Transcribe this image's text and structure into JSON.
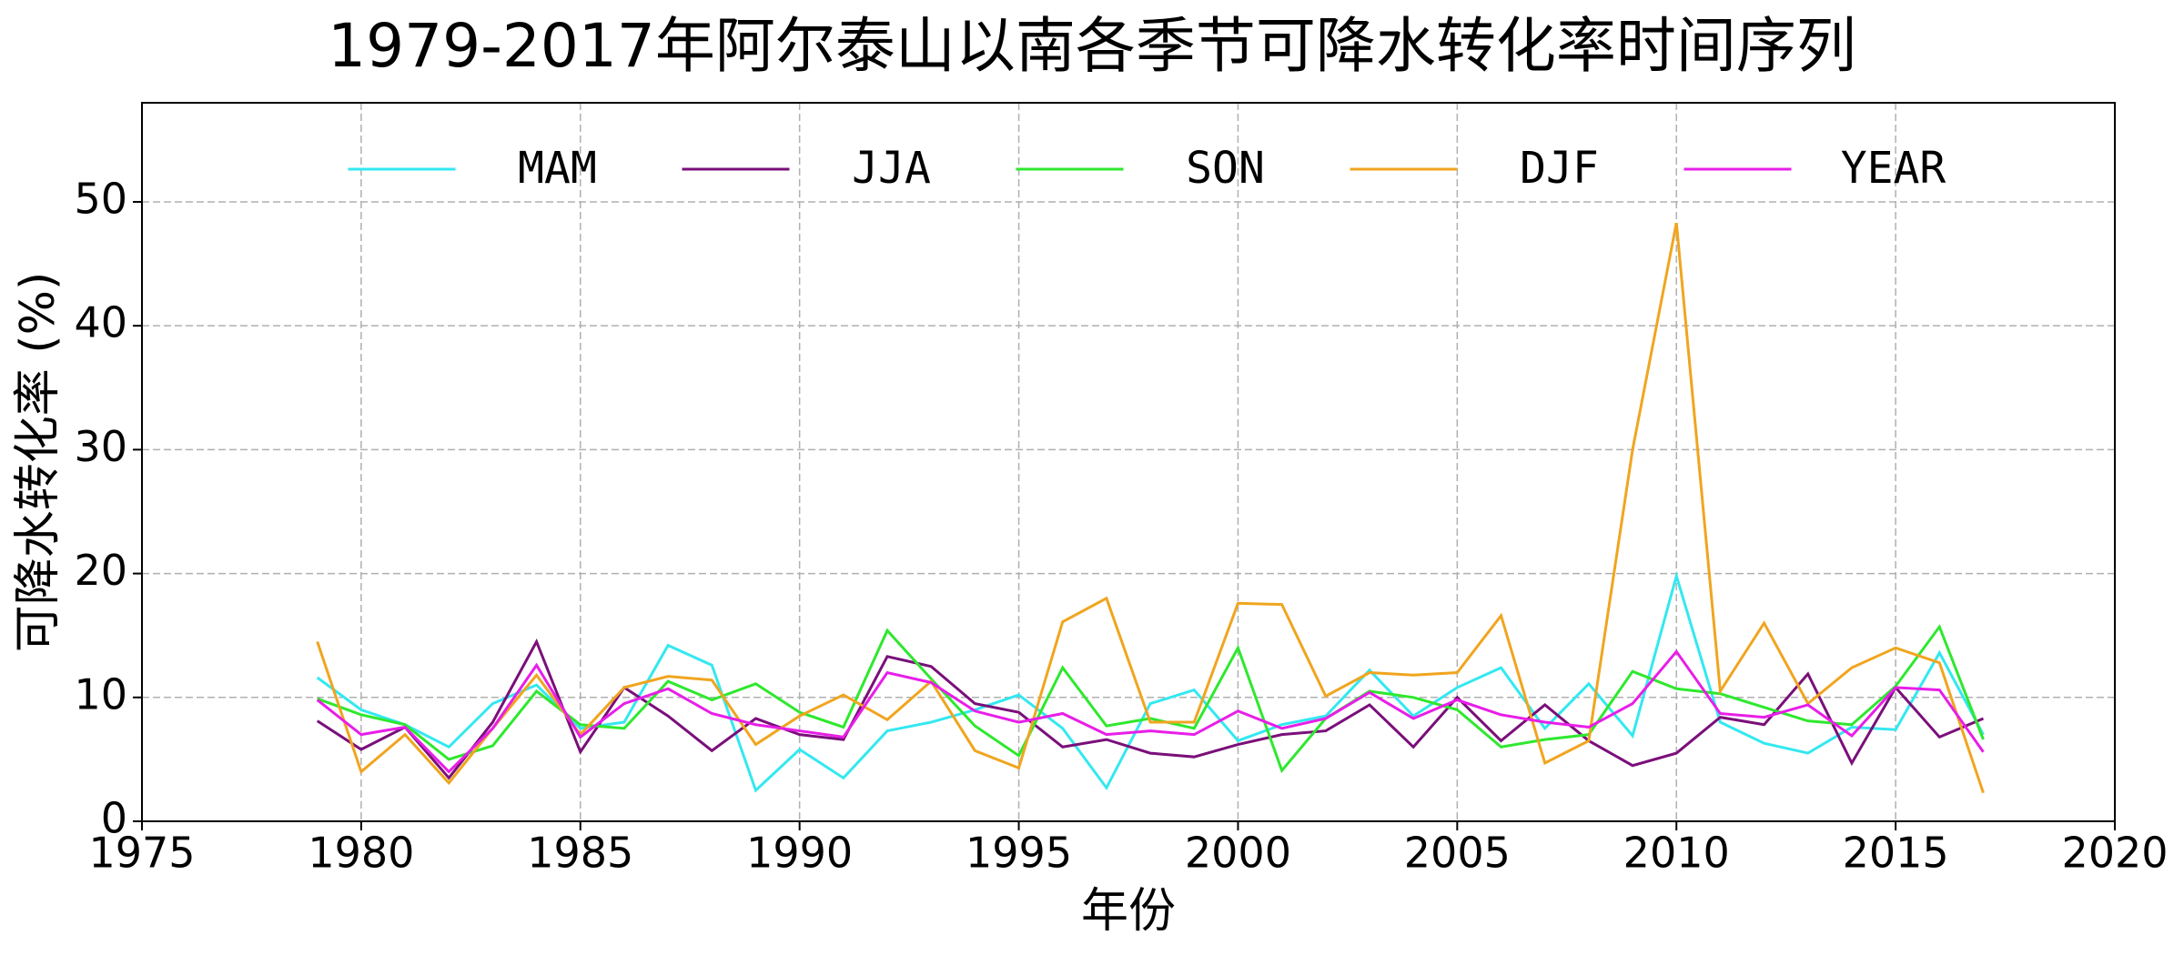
{
  "chart_data": {
    "type": "line",
    "title": "1979-2017年阿尔泰山以南各季节可降水转化率时间序列",
    "x_label": "年份",
    "y_label": "可降水转化率 (%)",
    "x": [
      1979,
      1980,
      1981,
      1982,
      1983,
      1984,
      1985,
      1986,
      1987,
      1988,
      1989,
      1990,
      1991,
      1992,
      1993,
      1994,
      1995,
      1996,
      1997,
      1998,
      1999,
      2000,
      2001,
      2002,
      2003,
      2004,
      2005,
      2006,
      2007,
      2008,
      2009,
      2010,
      2011,
      2012,
      2013,
      2014,
      2015,
      2016,
      2017
    ],
    "series": [
      {
        "name": "MAM",
        "color": "#33e8f0",
        "values": [
          11.6,
          9.0,
          7.8,
          6.0,
          9.5,
          11.0,
          7.5,
          8.0,
          14.2,
          12.6,
          2.5,
          5.8,
          3.5,
          7.3,
          8.0,
          9.0,
          10.2,
          7.5,
          2.7,
          9.5,
          10.6,
          6.5,
          7.8,
          8.5,
          12.2,
          8.5,
          10.8,
          12.4,
          7.5,
          11.1,
          6.9,
          19.8,
          8.0,
          6.3,
          5.5,
          7.6,
          7.4,
          13.6,
          7.0
        ]
      },
      {
        "name": "JJA",
        "color": "#7a0f7a",
        "values": [
          8.1,
          5.8,
          7.6,
          3.5,
          8.0,
          14.5,
          5.6,
          10.8,
          8.5,
          5.7,
          8.3,
          7.0,
          6.6,
          13.3,
          12.5,
          9.5,
          8.8,
          6.0,
          6.6,
          5.5,
          5.2,
          6.2,
          7.0,
          7.3,
          9.4,
          6.0,
          10.0,
          6.5,
          9.4,
          6.5,
          4.5,
          5.5,
          8.4,
          7.8,
          11.9,
          4.7,
          10.8,
          6.8,
          8.3
        ]
      },
      {
        "name": "SON",
        "color": "#2ee82e",
        "values": [
          9.9,
          8.6,
          7.8,
          5.0,
          6.1,
          10.5,
          7.8,
          7.5,
          11.3,
          9.8,
          11.1,
          8.8,
          7.6,
          15.4,
          11.5,
          7.7,
          5.3,
          12.4,
          7.7,
          8.3,
          7.5,
          14.0,
          4.1,
          8.3,
          10.5,
          10.0,
          9.0,
          6.0,
          6.6,
          7.0,
          12.1,
          10.7,
          10.3,
          9.2,
          8.1,
          7.8,
          10.9,
          15.7,
          6.6
        ]
      },
      {
        "name": "DJF",
        "color": "#f0a51f",
        "values": [
          14.5,
          4.0,
          7.0,
          3.1,
          7.5,
          11.8,
          7.0,
          10.8,
          11.7,
          11.4,
          6.2,
          8.5,
          10.2,
          8.2,
          11.3,
          5.7,
          4.3,
          16.1,
          18.0,
          8.0,
          8.0,
          17.6,
          17.5,
          10.1,
          12.0,
          11.8,
          12.0,
          16.6,
          4.7,
          6.5,
          30.0,
          48.3,
          10.5,
          16.0,
          9.5,
          12.4,
          14.0,
          12.8,
          2.3
        ]
      },
      {
        "name": "YEAR",
        "color": "#e81ee8",
        "values": [
          9.8,
          7.0,
          7.6,
          4.0,
          7.5,
          12.6,
          6.8,
          9.5,
          10.7,
          8.7,
          7.8,
          7.3,
          6.8,
          12.0,
          11.2,
          8.9,
          8.0,
          8.7,
          7.0,
          7.3,
          7.0,
          8.9,
          7.5,
          8.3,
          10.4,
          8.3,
          9.8,
          8.6,
          8.0,
          7.6,
          9.5,
          13.7,
          8.7,
          8.4,
          9.4,
          6.9,
          10.8,
          10.6,
          5.6
        ]
      }
    ],
    "xlim": [
      1975,
      2020
    ],
    "xticks": [
      1975,
      1980,
      1985,
      1990,
      1995,
      2000,
      2005,
      2010,
      2015,
      2020
    ],
    "ylim": [
      0,
      58
    ],
    "yticks": [
      0,
      10,
      20,
      30,
      40,
      50
    ],
    "grid": true,
    "legend": "upper center"
  }
}
